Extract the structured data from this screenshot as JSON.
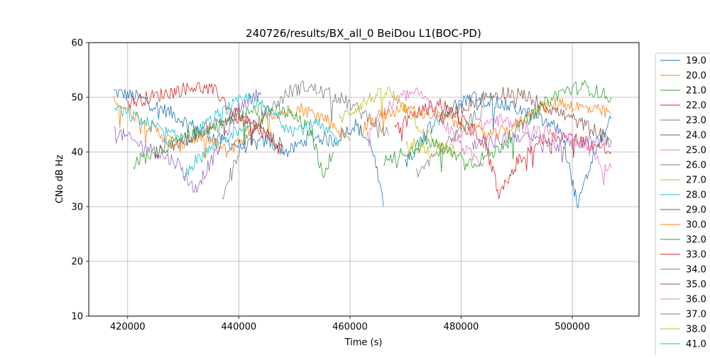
{
  "chart_data": {
    "type": "line",
    "title": "240726/results/BX_all_0 BeiDou L1(BOC-PD)",
    "xlabel": "Time (s)",
    "ylabel": "CNo dB Hz",
    "xlim": [
      413000,
      512000
    ],
    "ylim": [
      10,
      60
    ],
    "xticks": [
      420000,
      440000,
      460000,
      480000,
      500000
    ],
    "yticks": [
      10,
      20,
      30,
      40,
      50,
      60
    ],
    "grid": true,
    "legend_position": "right, outside plot area",
    "series": [
      {
        "name": "19.0",
        "color": "#1f77b4",
        "x": [
          417500,
          422000,
          428000,
          433000,
          437000,
          441000,
          445000,
          449000,
          453000,
          457000,
          461000,
          464000,
          466000
        ],
        "y": [
          51,
          50,
          47,
          44,
          42,
          41,
          42,
          40,
          43,
          42,
          45,
          41,
          30
        ]
      },
      {
        "name": "20.0",
        "color": "#ff7f0e",
        "x": [
          417500,
          421000,
          425000,
          429000,
          433000,
          438000,
          442000,
          446000,
          451000,
          456000,
          460000
        ],
        "y": [
          50,
          47,
          44,
          41,
          43,
          40,
          44,
          47,
          48,
          46,
          42
        ]
      },
      {
        "name": "21.0",
        "color": "#2ca02c",
        "x": [
          421000,
          425000,
          429000,
          434000,
          439000,
          444000,
          449000,
          453000,
          455000,
          457000
        ],
        "y": [
          38,
          40,
          42,
          44,
          46,
          48,
          47,
          44,
          36,
          40
        ]
      },
      {
        "name": "22.0",
        "color": "#d62728",
        "x": [
          420000,
          424000,
          428000,
          432000,
          436000,
          440000,
          444000,
          448000
        ],
        "y": [
          49,
          50,
          51,
          52,
          51,
          46,
          44,
          40
        ]
      },
      {
        "name": "23.0",
        "color": "#9467bd",
        "x": [
          417500,
          421000,
          425000,
          429000,
          432000,
          436000,
          440000,
          444000
        ],
        "y": [
          44,
          42,
          40,
          38,
          33,
          40,
          48,
          51
        ]
      },
      {
        "name": "24.0",
        "color": "#8c564b",
        "x": [
          425000,
          430000,
          435000,
          440000,
          444000,
          448000
        ],
        "y": [
          40,
          42,
          45,
          47,
          44,
          41
        ]
      },
      {
        "name": "25.0",
        "color": "#e377c2",
        "x": [
          463000,
          466000,
          469000,
          472000,
          475000,
          478000,
          481000,
          484000
        ],
        "y": [
          44,
          47,
          50,
          51,
          48,
          44,
          40,
          38
        ]
      },
      {
        "name": "26.0",
        "color": "#7f7f7f",
        "x": [
          437000,
          440000,
          443000,
          446000,
          449000,
          452000,
          455000,
          458000,
          461000,
          464000,
          467000
        ],
        "y": [
          32,
          40,
          45,
          48,
          51,
          52,
          51,
          50,
          48,
          46,
          43
        ]
      },
      {
        "name": "27.0",
        "color": "#bcbd22",
        "x": [
          458000,
          461000,
          464000,
          467000,
          470000,
          473000,
          476000,
          479000
        ],
        "y": [
          46,
          48,
          50,
          51,
          48,
          44,
          41,
          40
        ]
      },
      {
        "name": "28.0",
        "color": "#17becf",
        "x": [
          417500,
          422000,
          426000,
          430000,
          434000,
          438000,
          442000,
          446000,
          450000,
          454000,
          458000
        ],
        "y": [
          48,
          46,
          44,
          42,
          45,
          48,
          50,
          47,
          44,
          45,
          42
        ]
      },
      {
        "name": "29.0",
        "color": "#1f77b4",
        "x": [
          470000,
          474000,
          478000,
          482000,
          486000,
          490000,
          494000,
          498000,
          501000,
          504000,
          507000
        ],
        "y": [
          38,
          44,
          48,
          50,
          49,
          48,
          46,
          44,
          30,
          40,
          46
        ]
      },
      {
        "name": "30.0",
        "color": "#ff7f0e",
        "x": [
          462000,
          466000,
          470000,
          474000,
          478000,
          482000,
          486000,
          490000,
          494000,
          498000,
          502000,
          507000
        ],
        "y": [
          44,
          47,
          48,
          47,
          46,
          44,
          43,
          45,
          48,
          49,
          48,
          47
        ]
      },
      {
        "name": "32.0",
        "color": "#2ca02c",
        "x": [
          466000,
          470000,
          474000,
          478000,
          482000,
          486000,
          490000,
          494000,
          498000,
          502000,
          507000
        ],
        "y": [
          38,
          40,
          42,
          40,
          38,
          40,
          44,
          48,
          51,
          52,
          50
        ]
      },
      {
        "name": "33.0",
        "color": "#d62728",
        "x": [
          468000,
          472000,
          476000,
          480000,
          484000,
          487000,
          490000,
          494000,
          498000,
          502000,
          507000
        ],
        "y": [
          44,
          47,
          49,
          46,
          42,
          32,
          38,
          42,
          43,
          42,
          40
        ]
      },
      {
        "name": "34.0",
        "color": "#9467bd",
        "x": [
          482000,
          486000,
          490000,
          494000,
          498000,
          502000,
          507000
        ],
        "y": [
          41,
          42,
          43,
          42,
          41,
          42,
          42
        ]
      },
      {
        "name": "35.0",
        "color": "#8c564b",
        "x": [
          476000,
          480000,
          484000,
          488000,
          492000,
          496000,
          500000,
          504000,
          507000
        ],
        "y": [
          46,
          48,
          50,
          51,
          50,
          48,
          46,
          44,
          42
        ]
      },
      {
        "name": "36.0",
        "color": "#e377c2",
        "x": [
          478000,
          482000,
          486000,
          490000,
          494000,
          498000,
          502000,
          505000,
          507000
        ],
        "y": [
          42,
          44,
          46,
          45,
          44,
          43,
          42,
          38,
          37
        ]
      },
      {
        "name": "37.0",
        "color": "#7f7f7f",
        "x": [
          472000,
          476000,
          480000,
          484000
        ],
        "y": [
          36,
          40,
          44,
          48
        ]
      },
      {
        "name": "38.0",
        "color": "#bcbd22",
        "x": [
          470000,
          474000,
          478000
        ],
        "y": [
          42,
          40,
          41
        ]
      },
      {
        "name": "41.0",
        "color": "#17becf",
        "x": [
          430000,
          434000,
          438000,
          442000
        ],
        "y": [
          36,
          40,
          43,
          45
        ]
      }
    ]
  }
}
